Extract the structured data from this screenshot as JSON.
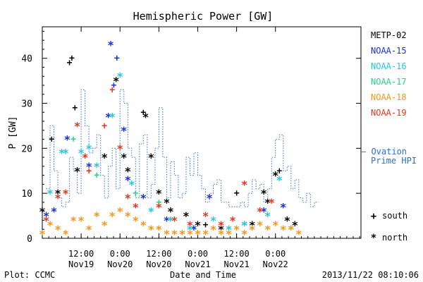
{
  "chart_data": {
    "type": "scatter",
    "title": "Hemispheric Power [GW]",
    "ylabel": "P [GW]",
    "xlabel": "Date and Time",
    "xlim": [
      0.0,
      4.1
    ],
    "ylim": [
      0,
      47
    ],
    "y_ticks": [
      0,
      10,
      20,
      30,
      40
    ],
    "x_ticks": [
      {
        "x": 0.5,
        "line1": "12:00",
        "line2": "Nov19"
      },
      {
        "x": 1.0,
        "line1": "0:00",
        "line2": "Nov20"
      },
      {
        "x": 1.5,
        "line1": "12:00",
        "line2": "Nov20"
      },
      {
        "x": 2.0,
        "line1": "0:00",
        "line2": "Nov21"
      },
      {
        "x": 2.5,
        "line1": "12:00",
        "line2": "Nov21"
      },
      {
        "x": 3.0,
        "line1": "0:00",
        "line2": "Nov22"
      }
    ],
    "legend": {
      "position": "right",
      "items": [
        {
          "name": "METP-02",
          "color": "#000000"
        },
        {
          "name": "NOAA-15",
          "color": "#1a2fd4"
        },
        {
          "name": "NOAA-16",
          "color": "#22c7e0"
        },
        {
          "name": "NOAA-17",
          "color": "#22d488"
        },
        {
          "name": "NOAA-18",
          "color": "#f0961e"
        },
        {
          "name": "NOAA-19",
          "color": "#e2361e"
        }
      ],
      "line_label_1": "— Ovation",
      "line_label_2": "Prime HPI",
      "line_color": "#2a6fcf",
      "symbols": [
        {
          "symbol": "+",
          "label": "south"
        },
        {
          "symbol": "*",
          "label": "north"
        }
      ]
    },
    "ovation_step": [
      [
        0.05,
        11
      ],
      [
        0.1,
        25
      ],
      [
        0.15,
        15
      ],
      [
        0.2,
        9
      ],
      [
        0.25,
        7
      ],
      [
        0.3,
        8
      ],
      [
        0.35,
        18
      ],
      [
        0.4,
        15
      ],
      [
        0.45,
        10
      ],
      [
        0.5,
        33
      ],
      [
        0.55,
        25
      ],
      [
        0.6,
        19
      ],
      [
        0.65,
        20
      ],
      [
        0.7,
        23
      ],
      [
        0.75,
        14
      ],
      [
        0.8,
        9
      ],
      [
        0.85,
        16
      ],
      [
        0.9,
        20
      ],
      [
        0.95,
        11
      ],
      [
        1.0,
        33
      ],
      [
        1.05,
        30
      ],
      [
        1.1,
        20
      ],
      [
        1.15,
        18
      ],
      [
        1.2,
        9
      ],
      [
        1.25,
        21
      ],
      [
        1.3,
        23
      ],
      [
        1.35,
        9
      ],
      [
        1.4,
        12
      ],
      [
        1.45,
        20
      ],
      [
        1.5,
        29
      ],
      [
        1.55,
        18
      ],
      [
        1.6,
        9
      ],
      [
        1.65,
        17
      ],
      [
        1.7,
        14
      ],
      [
        1.75,
        9
      ],
      [
        1.8,
        10
      ],
      [
        1.85,
        18
      ],
      [
        1.9,
        14
      ],
      [
        1.95,
        19
      ],
      [
        2.0,
        14
      ],
      [
        2.05,
        11
      ],
      [
        2.1,
        8
      ],
      [
        2.15,
        10
      ],
      [
        2.2,
        12
      ],
      [
        2.25,
        13
      ],
      [
        2.3,
        8
      ],
      [
        2.35,
        8
      ],
      [
        2.4,
        7
      ],
      [
        2.45,
        7
      ],
      [
        2.5,
        7
      ],
      [
        2.55,
        8
      ],
      [
        2.6,
        7
      ],
      [
        2.65,
        10
      ],
      [
        2.7,
        13
      ],
      [
        2.75,
        11
      ],
      [
        2.8,
        12
      ],
      [
        2.85,
        8
      ],
      [
        2.9,
        11
      ],
      [
        2.95,
        18
      ],
      [
        3.0,
        22
      ],
      [
        3.05,
        23
      ],
      [
        3.1,
        15
      ],
      [
        3.15,
        16
      ],
      [
        3.2,
        11
      ],
      [
        3.25,
        13
      ],
      [
        3.3,
        9
      ],
      [
        3.35,
        8
      ],
      [
        3.4,
        10
      ],
      [
        3.45,
        7
      ],
      [
        3.5,
        8
      ]
    ],
    "series": [
      {
        "name": "METP-02",
        "color": "#000000",
        "points": [
          [
            0.0,
            6,
            "*"
          ],
          [
            0.12,
            22,
            "+"
          ],
          [
            0.2,
            10,
            "*"
          ],
          [
            0.35,
            39,
            "+"
          ],
          [
            0.38,
            40,
            "+"
          ],
          [
            0.42,
            29,
            "+"
          ],
          [
            0.45,
            15,
            "*"
          ],
          [
            0.8,
            18,
            "*"
          ],
          [
            0.95,
            35,
            "*"
          ],
          [
            1.05,
            18,
            "*"
          ],
          [
            1.1,
            15,
            "*"
          ],
          [
            1.3,
            28,
            "+"
          ],
          [
            1.33,
            27,
            "*"
          ],
          [
            1.4,
            18,
            "*"
          ],
          [
            1.5,
            10,
            "*"
          ],
          [
            1.6,
            8,
            "*"
          ],
          [
            1.65,
            6,
            "*"
          ],
          [
            1.85,
            5,
            "*"
          ],
          [
            2.0,
            3,
            "*"
          ],
          [
            2.1,
            3,
            "+"
          ],
          [
            2.3,
            2,
            "*"
          ],
          [
            2.5,
            10,
            "+"
          ],
          [
            2.7,
            3,
            "*"
          ],
          [
            2.85,
            10,
            "*"
          ],
          [
            2.9,
            8,
            "*"
          ],
          [
            3.0,
            14,
            "*"
          ],
          [
            3.05,
            15,
            "+"
          ],
          [
            3.15,
            4,
            "*"
          ],
          [
            3.25,
            3,
            "*"
          ]
        ]
      },
      {
        "name": "NOAA-15",
        "color": "#1a2fd4",
        "points": [
          [
            0.05,
            5,
            "*"
          ],
          [
            0.15,
            6,
            "*"
          ],
          [
            0.32,
            22,
            "*"
          ],
          [
            0.6,
            16,
            "*"
          ],
          [
            0.85,
            27,
            "*"
          ],
          [
            0.88,
            43,
            "*"
          ],
          [
            0.92,
            34,
            "+"
          ],
          [
            0.96,
            40,
            "+"
          ],
          [
            1.05,
            24,
            "*"
          ],
          [
            1.1,
            13,
            "*"
          ],
          [
            1.3,
            9,
            "*"
          ],
          [
            1.6,
            4,
            "*"
          ],
          [
            1.95,
            2,
            "*"
          ],
          [
            2.15,
            9,
            "*"
          ],
          [
            2.6,
            3,
            "*"
          ],
          [
            2.85,
            6,
            "*"
          ],
          [
            3.1,
            7,
            "*"
          ]
        ]
      },
      {
        "name": "NOAA-16",
        "color": "#22c7e0",
        "points": [
          [
            0.1,
            10,
            "*"
          ],
          [
            0.25,
            19,
            "*"
          ],
          [
            0.3,
            19,
            "*"
          ],
          [
            0.5,
            19,
            "*"
          ],
          [
            0.6,
            20,
            "*"
          ],
          [
            0.7,
            16,
            "*"
          ],
          [
            0.9,
            27,
            "*"
          ],
          [
            1.0,
            36,
            "*"
          ],
          [
            1.15,
            12,
            "*"
          ],
          [
            1.4,
            6,
            "*"
          ],
          [
            1.65,
            4,
            "*"
          ],
          [
            1.9,
            2,
            "*"
          ],
          [
            2.2,
            4,
            "*"
          ],
          [
            2.4,
            2,
            "*"
          ],
          [
            2.6,
            3,
            "*"
          ],
          [
            2.9,
            5,
            "*"
          ],
          [
            3.05,
            13,
            "*"
          ],
          [
            3.2,
            2,
            "*"
          ]
        ]
      },
      {
        "name": "NOAA-17",
        "color": "#22d488",
        "points": [
          [
            0.4,
            22,
            "+"
          ],
          [
            0.7,
            14,
            "+"
          ],
          [
            1.2,
            10,
            "+"
          ],
          [
            1.5,
            8,
            "+"
          ]
        ]
      },
      {
        "name": "NOAA-18",
        "color": "#f0961e",
        "points": [
          [
            0.0,
            1,
            "*"
          ],
          [
            0.1,
            3,
            "*"
          ],
          [
            0.2,
            2,
            "*"
          ],
          [
            0.3,
            1,
            "*"
          ],
          [
            0.4,
            4,
            "*"
          ],
          [
            0.5,
            4,
            "*"
          ],
          [
            0.6,
            2,
            "*"
          ],
          [
            0.7,
            5,
            "*"
          ],
          [
            0.8,
            3,
            "*"
          ],
          [
            0.9,
            5,
            "*"
          ],
          [
            1.0,
            6,
            "*"
          ],
          [
            1.1,
            5,
            "*"
          ],
          [
            1.2,
            4,
            "*"
          ],
          [
            1.3,
            3,
            "*"
          ],
          [
            1.4,
            2,
            "*"
          ],
          [
            1.5,
            2,
            "*"
          ],
          [
            1.6,
            1,
            "*"
          ],
          [
            1.7,
            1,
            "*"
          ],
          [
            1.8,
            1,
            "*"
          ],
          [
            1.9,
            1,
            "*"
          ],
          [
            2.0,
            1,
            "*"
          ],
          [
            2.1,
            1,
            "*"
          ],
          [
            2.2,
            2,
            "*"
          ],
          [
            2.3,
            1,
            "*"
          ],
          [
            2.4,
            1,
            "*"
          ],
          [
            2.5,
            2,
            "*"
          ],
          [
            2.6,
            1,
            "*"
          ],
          [
            2.7,
            2,
            "*"
          ],
          [
            2.8,
            3,
            "*"
          ],
          [
            2.9,
            2,
            "*"
          ],
          [
            3.0,
            3,
            "*"
          ],
          [
            3.1,
            2,
            "*"
          ],
          [
            3.2,
            2,
            "*"
          ],
          [
            3.3,
            1,
            "*"
          ]
        ]
      },
      {
        "name": "NOAA-19",
        "color": "#e2361e",
        "points": [
          [
            0.05,
            4,
            "*"
          ],
          [
            0.2,
            9,
            "*"
          ],
          [
            0.3,
            10,
            "*"
          ],
          [
            0.45,
            25,
            "*"
          ],
          [
            0.55,
            18,
            "*"
          ],
          [
            0.6,
            15,
            "+"
          ],
          [
            0.8,
            25,
            "+"
          ],
          [
            0.9,
            33,
            "+"
          ],
          [
            1.0,
            20,
            "*"
          ],
          [
            1.1,
            9,
            "*"
          ],
          [
            1.2,
            7,
            "*"
          ],
          [
            1.5,
            7,
            "*"
          ],
          [
            1.7,
            4,
            "*"
          ],
          [
            1.9,
            3,
            "*"
          ],
          [
            2.1,
            5,
            "*"
          ],
          [
            2.3,
            3,
            "*"
          ],
          [
            2.45,
            4,
            "*"
          ],
          [
            2.6,
            12,
            "*"
          ],
          [
            2.8,
            6,
            "*"
          ],
          [
            2.95,
            8,
            "*"
          ]
        ]
      }
    ]
  },
  "footer": {
    "left": "Plot: CCMC",
    "right": "2013/11/22 08:10:06"
  }
}
